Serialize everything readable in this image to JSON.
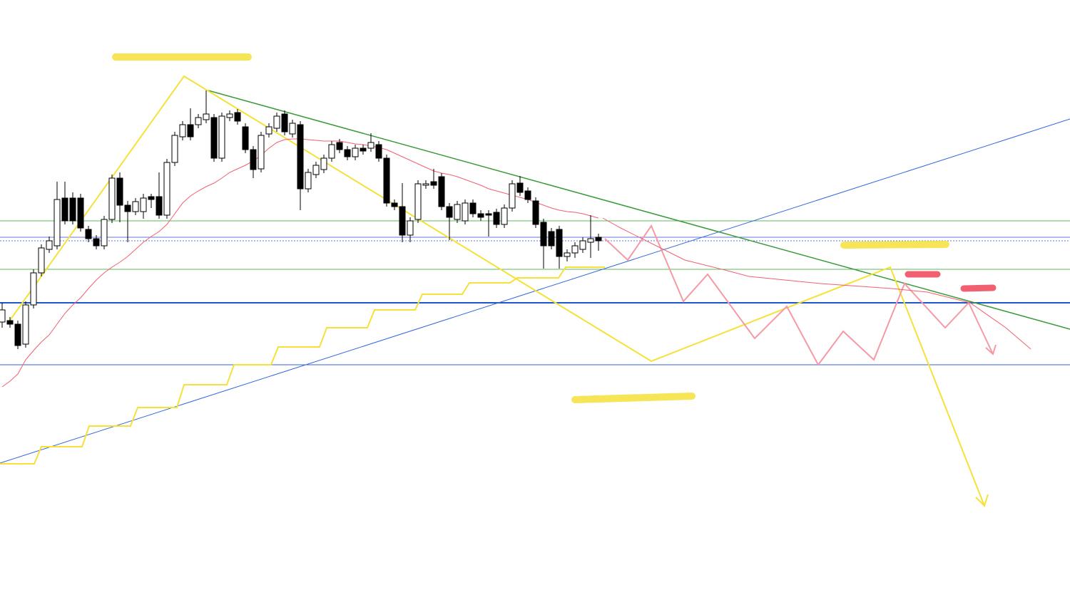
{
  "chart_data": {
    "type": "candlestick",
    "ylim": [
      0,
      852
    ],
    "up_color": "#ffffff",
    "down_color": "#000000",
    "ma_color": "#f06070",
    "candles": [
      [
        400,
        427,
        392,
        417
      ],
      [
        402,
        407,
        392,
        397
      ],
      [
        397,
        402,
        362,
        367
      ],
      [
        369,
        429,
        364,
        424
      ],
      [
        424,
        474,
        419,
        469
      ],
      [
        469,
        509,
        464,
        504
      ],
      [
        502,
        520,
        497,
        514
      ],
      [
        507,
        597,
        502,
        572
      ],
      [
        574,
        597,
        537,
        542
      ],
      [
        574,
        582,
        537,
        542
      ],
      [
        574,
        580,
        527,
        532
      ],
      [
        530,
        535,
        512,
        517
      ],
      [
        517,
        522,
        502,
        507
      ],
      [
        507,
        549,
        502,
        544
      ],
      [
        544,
        607,
        539,
        602
      ],
      [
        602,
        610,
        540,
        564
      ],
      [
        564,
        570,
        512,
        555
      ],
      [
        555,
        574,
        550,
        569
      ],
      [
        555,
        580,
        545,
        574
      ],
      [
        576,
        580,
        560,
        572
      ],
      [
        576,
        610,
        545,
        550
      ],
      [
        550,
        629,
        545,
        624
      ],
      [
        624,
        667,
        619,
        662
      ],
      [
        660,
        682,
        655,
        677
      ],
      [
        677,
        700,
        655,
        660
      ],
      [
        677,
        692,
        672,
        687
      ],
      [
        684,
        725,
        679,
        692
      ],
      [
        687,
        692,
        625,
        630
      ],
      [
        630,
        694,
        625,
        689
      ],
      [
        687,
        697,
        682,
        692
      ],
      [
        694,
        699,
        677,
        682
      ],
      [
        674,
        679,
        637,
        642
      ],
      [
        642,
        647,
        602,
        614
      ],
      [
        615,
        667,
        610,
        662
      ],
      [
        664,
        679,
        659,
        674
      ],
      [
        672,
        694,
        667,
        689
      ],
      [
        692,
        697,
        662,
        667
      ],
      [
        664,
        684,
        659,
        679
      ],
      [
        677,
        682,
        557,
        587
      ],
      [
        587,
        615,
        582,
        610
      ],
      [
        607,
        625,
        602,
        620
      ],
      [
        614,
        635,
        609,
        630
      ],
      [
        630,
        654,
        625,
        649
      ],
      [
        652,
        657,
        637,
        642
      ],
      [
        642,
        647,
        627,
        632
      ],
      [
        632,
        649,
        627,
        644
      ],
      [
        644,
        649,
        635,
        640
      ],
      [
        644,
        665,
        639,
        652
      ],
      [
        649,
        654,
        625,
        630
      ],
      [
        630,
        635,
        562,
        567
      ],
      [
        567,
        572,
        557,
        562
      ],
      [
        562,
        595,
        512,
        522
      ],
      [
        522,
        547,
        512,
        542
      ],
      [
        544,
        599,
        539,
        594
      ],
      [
        592,
        599,
        587,
        594
      ],
      [
        597,
        615,
        587,
        592
      ],
      [
        604,
        609,
        557,
        562
      ],
      [
        562,
        567,
        515,
        547
      ],
      [
        544,
        570,
        539,
        565
      ],
      [
        542,
        572,
        537,
        567
      ],
      [
        567,
        572,
        547,
        552
      ],
      [
        552,
        557,
        542,
        547
      ],
      [
        552,
        557,
        520,
        550
      ],
      [
        554,
        559,
        532,
        537
      ],
      [
        537,
        565,
        532,
        560
      ],
      [
        560,
        599,
        555,
        594
      ],
      [
        595,
        605,
        577,
        582
      ],
      [
        584,
        589,
        567,
        572
      ],
      [
        570,
        575,
        532,
        537
      ],
      [
        540,
        545,
        475,
        507
      ],
      [
        527,
        532,
        502,
        507
      ],
      [
        530,
        535,
        475,
        492
      ],
      [
        492,
        502,
        485,
        497
      ],
      [
        497,
        512,
        490,
        507
      ],
      [
        502,
        519,
        497,
        514
      ],
      [
        512,
        550,
        490,
        517
      ],
      [
        519,
        524,
        500,
        514
      ]
    ],
    "ma": [
      309,
      317,
      327,
      347,
      360,
      372,
      382,
      397,
      412,
      424,
      434,
      447,
      459,
      469,
      477,
      484,
      492,
      502,
      512,
      520,
      527,
      537,
      552,
      567,
      577,
      584,
      590,
      595,
      602,
      610,
      615,
      620,
      626,
      634,
      644,
      652,
      656,
      657,
      657,
      656,
      655,
      654,
      654,
      654,
      652,
      650,
      649,
      647,
      645,
      642,
      637,
      632,
      627,
      622,
      617,
      612,
      609,
      607,
      604,
      600,
      596,
      592,
      587,
      584,
      581,
      578,
      575,
      572,
      568,
      564,
      560,
      557,
      555,
      554,
      552,
      549,
      546
    ]
  }
}
